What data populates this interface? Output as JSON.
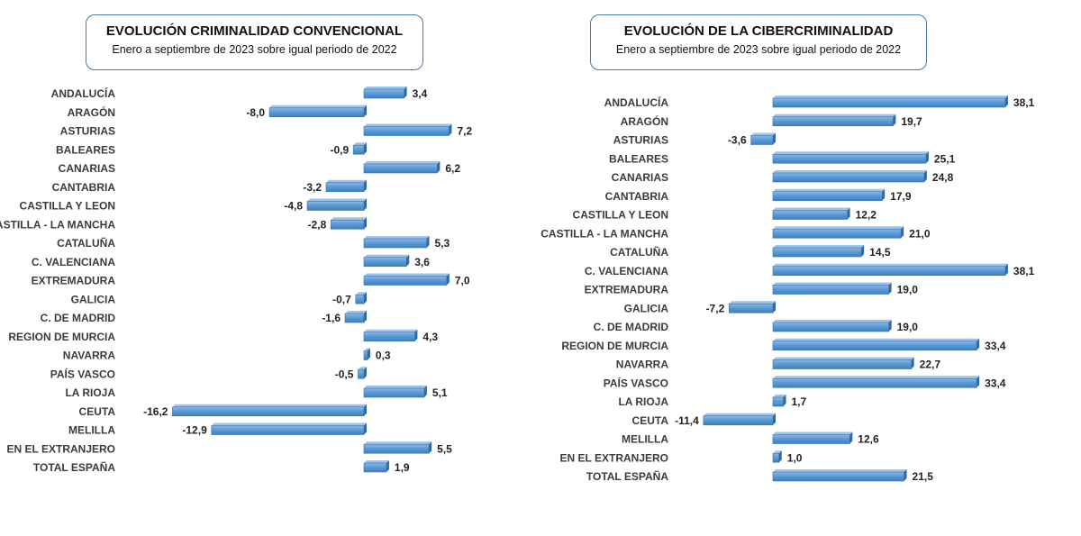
{
  "chart_data": [
    {
      "type": "bar",
      "orientation": "horizontal",
      "title": "EVOLUCIÓN CRIMINALIDAD CONVENCIONAL",
      "subtitle": "Enero a septiembre de 2023 sobre igual periodo de 2022",
      "categories": [
        "ANDALUCÍA",
        "ARAGÓN",
        "ASTURIAS",
        "BALEARES",
        "CANARIAS",
        "CANTABRIA",
        "CASTILLA Y LEON",
        "CASTILLA - LA MANCHA",
        "CATALUÑA",
        "C. VALENCIANA",
        "EXTREMADURA",
        "GALICIA",
        "C. DE MADRID",
        "REGION DE MURCIA",
        "NAVARRA",
        "PAÍS VASCO",
        "LA RIOJA",
        "CEUTA",
        "MELILLA",
        "EN EL EXTRANJERO",
        "TOTAL ESPAÑA"
      ],
      "values": [
        3.4,
        -8.0,
        7.2,
        -0.9,
        6.2,
        -3.2,
        -4.8,
        -2.8,
        5.3,
        3.6,
        7.0,
        -0.7,
        -1.6,
        4.3,
        0.3,
        -0.5,
        5.1,
        -16.2,
        -12.9,
        5.5,
        1.9
      ],
      "value_labels": [
        "3,4",
        "-8,0",
        "7,2",
        "-0,9",
        "6,2",
        "-3,2",
        "-4,8",
        "-2,8",
        "5,3",
        "3,6",
        "7,0",
        "-0,7",
        "-1,6",
        "4,3",
        "0,3",
        "-0,5",
        "5,1",
        "-16,2",
        "-12,9",
        "5,5",
        "1,9"
      ],
      "color": "#5b9bd5",
      "grid": false,
      "legend": "none"
    },
    {
      "type": "bar",
      "orientation": "horizontal",
      "title": "EVOLUCIÓN DE LA CIBERCRIMINALIDAD",
      "subtitle": "Enero a septiembre de 2023 sobre igual periodo de 2022",
      "categories": [
        "ANDALUCÍA",
        "ARAGÓN",
        "ASTURIAS",
        "BALEARES",
        "CANARIAS",
        "CANTABRIA",
        "CASTILLA Y LEON",
        "CASTILLA - LA MANCHA",
        "CATALUÑA",
        "C. VALENCIANA",
        "EXTREMADURA",
        "GALICIA",
        "C. DE MADRID",
        "REGION DE MURCIA",
        "NAVARRA",
        "PAÍS VASCO",
        "LA RIOJA",
        "CEUTA",
        "MELILLA",
        "EN EL EXTRANJERO",
        "TOTAL ESPAÑA"
      ],
      "values": [
        38.1,
        19.7,
        -3.6,
        25.1,
        24.8,
        17.9,
        12.2,
        21.0,
        14.5,
        38.1,
        19.0,
        -7.2,
        19.0,
        33.4,
        22.7,
        33.4,
        1.7,
        -11.4,
        12.6,
        1.0,
        21.5
      ],
      "value_labels": [
        "38,1",
        "19,7",
        "-3,6",
        "25,1",
        "24,8",
        "17,9",
        "12,2",
        "21,0",
        "14,5",
        "38,1",
        "19,0",
        "-7,2",
        "19,0",
        "33,4",
        "22,7",
        "33,4",
        "1,7",
        "-11,4",
        "12,6",
        "1,0",
        "21,5"
      ],
      "color": "#5b9bd5",
      "grid": false,
      "legend": "none"
    }
  ]
}
